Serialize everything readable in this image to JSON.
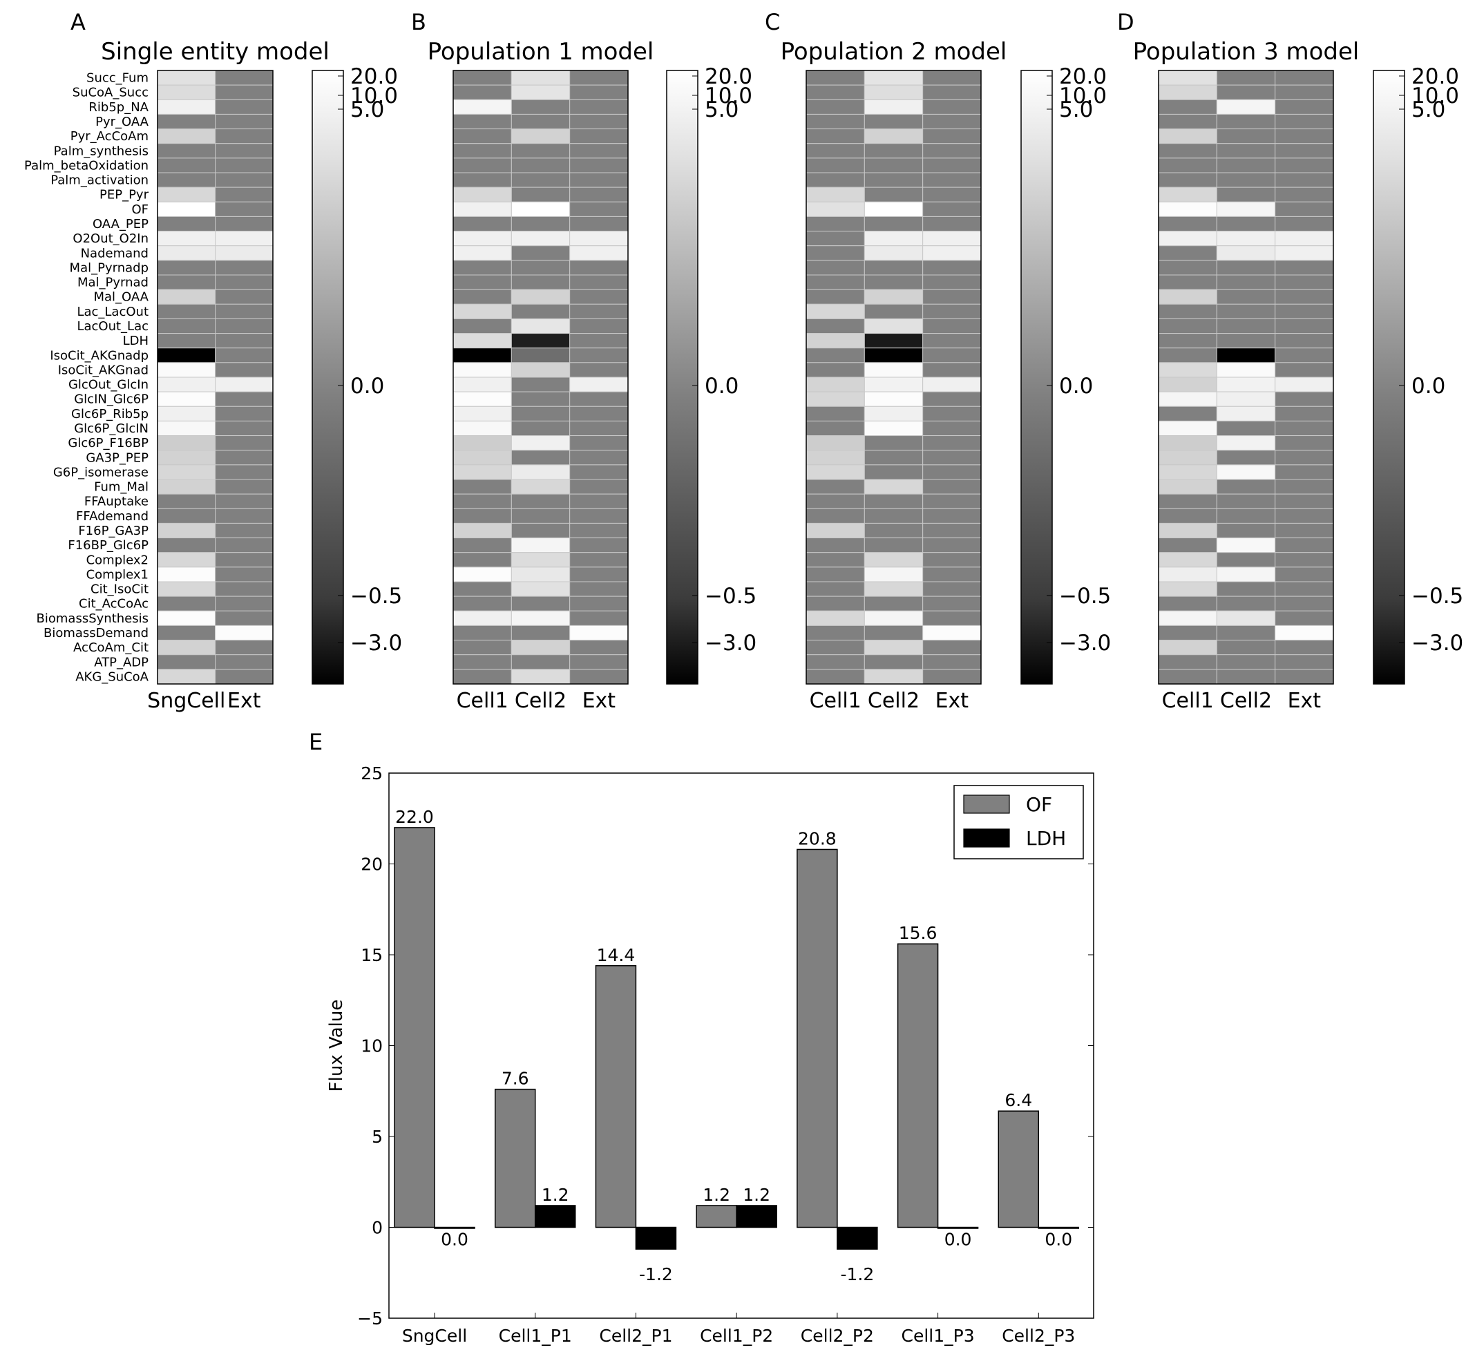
{
  "colors": {
    "of": "#808080",
    "ldh": "#000000",
    "cell_line": "#c8c8c8"
  },
  "heatmap_rows": [
    "Succ_Fum",
    "SuCoA_Succ",
    "Rib5p_NA",
    "Pyr_OAA",
    "Pyr_AcCoAm",
    "Palm_synthesis",
    "Palm_betaOxidation",
    "Palm_activation",
    "PEP_Pyr",
    "OF",
    "OAA_PEP",
    "O2Out_O2In",
    "Nademand",
    "Mal_Pyrnadp",
    "Mal_Pyrnad",
    "Mal_OAA",
    "Lac_LacOut",
    "LacOut_Lac",
    "LDH",
    "IsoCit_AKGnadp",
    "IsoCit_AKGnad",
    "GlcOut_GlcIn",
    "GlcIN_Glc6P",
    "Glc6P_Rib5p",
    "Glc6P_GlcIN",
    "Glc6P_F16BP",
    "GA3P_PEP",
    "G6P_isomerase",
    "Fum_Mal",
    "FFAuptake",
    "FFAdemand",
    "F16P_GA3P",
    "F16BP_Glc6P",
    "Complex2",
    "Complex1",
    "Cit_IsoCit",
    "Cit_AcCoAc",
    "BiomassSynthesis",
    "BiomassDemand",
    "AcCoAm_Cit",
    "ATP_ADP",
    "AKG_SuCoA"
  ],
  "colorbar_ticks": [
    "20.0",
    "10.0",
    "5.0",
    "0.0",
    "−0.5",
    "−3.0"
  ],
  "chart_data": [
    {
      "type": "heatmap",
      "panel": "A",
      "title": "Single entity model",
      "columns": [
        "SngCell",
        "Ext"
      ],
      "gray_values": [
        [
          225,
          128
        ],
        [
          220,
          128
        ],
        [
          240,
          128
        ],
        [
          128,
          128
        ],
        [
          210,
          128
        ],
        [
          128,
          128
        ],
        [
          128,
          128
        ],
        [
          128,
          128
        ],
        [
          215,
          128
        ],
        [
          255,
          128
        ],
        [
          128,
          128
        ],
        [
          240,
          240
        ],
        [
          235,
          235
        ],
        [
          128,
          128
        ],
        [
          128,
          128
        ],
        [
          210,
          128
        ],
        [
          128,
          128
        ],
        [
          128,
          128
        ],
        [
          128,
          128
        ],
        [
          0,
          128
        ],
        [
          250,
          128
        ],
        [
          240,
          240
        ],
        [
          252,
          128
        ],
        [
          240,
          128
        ],
        [
          248,
          128
        ],
        [
          205,
          128
        ],
        [
          210,
          128
        ],
        [
          215,
          128
        ],
        [
          210,
          128
        ],
        [
          128,
          128
        ],
        [
          128,
          128
        ],
        [
          210,
          128
        ],
        [
          128,
          128
        ],
        [
          215,
          128
        ],
        [
          252,
          128
        ],
        [
          215,
          128
        ],
        [
          128,
          128
        ],
        [
          252,
          128
        ],
        [
          128,
          252
        ],
        [
          210,
          128
        ],
        [
          128,
          128
        ],
        [
          215,
          128
        ]
      ]
    },
    {
      "type": "heatmap",
      "panel": "B",
      "title": "Population 1 model",
      "columns": [
        "Cell1",
        "Cell2",
        "Ext"
      ],
      "gray_values": [
        [
          128,
          225,
          128
        ],
        [
          128,
          228,
          128
        ],
        [
          245,
          128,
          128
        ],
        [
          128,
          128,
          128
        ],
        [
          128,
          210,
          128
        ],
        [
          128,
          128,
          128
        ],
        [
          128,
          128,
          128
        ],
        [
          128,
          128,
          128
        ],
        [
          215,
          128,
          128
        ],
        [
          240,
          255,
          128
        ],
        [
          128,
          128,
          128
        ],
        [
          240,
          240,
          240
        ],
        [
          240,
          128,
          240
        ],
        [
          128,
          128,
          128
        ],
        [
          128,
          128,
          128
        ],
        [
          128,
          210,
          128
        ],
        [
          215,
          128,
          128
        ],
        [
          128,
          230,
          128
        ],
        [
          220,
          30,
          128
        ],
        [
          0,
          110,
          128
        ],
        [
          250,
          210,
          128
        ],
        [
          240,
          128,
          240
        ],
        [
          252,
          128,
          128
        ],
        [
          240,
          128,
          128
        ],
        [
          248,
          128,
          128
        ],
        [
          205,
          240,
          128
        ],
        [
          210,
          128,
          128
        ],
        [
          215,
          235,
          128
        ],
        [
          128,
          215,
          128
        ],
        [
          128,
          128,
          128
        ],
        [
          128,
          128,
          128
        ],
        [
          210,
          128,
          128
        ],
        [
          128,
          245,
          128
        ],
        [
          128,
          220,
          128
        ],
        [
          252,
          232,
          128
        ],
        [
          128,
          225,
          128
        ],
        [
          128,
          128,
          128
        ],
        [
          240,
          245,
          128
        ],
        [
          128,
          128,
          252
        ],
        [
          128,
          210,
          128
        ],
        [
          128,
          128,
          128
        ],
        [
          128,
          220,
          128
        ]
      ]
    },
    {
      "type": "heatmap",
      "panel": "C",
      "title": "Population 2 model",
      "columns": [
        "Cell1",
        "Cell2",
        "Ext"
      ],
      "gray_values": [
        [
          128,
          228,
          128
        ],
        [
          128,
          222,
          128
        ],
        [
          128,
          240,
          128
        ],
        [
          128,
          128,
          128
        ],
        [
          128,
          210,
          128
        ],
        [
          128,
          128,
          128
        ],
        [
          128,
          128,
          128
        ],
        [
          128,
          128,
          128
        ],
        [
          215,
          128,
          128
        ],
        [
          225,
          255,
          128
        ],
        [
          128,
          128,
          128
        ],
        [
          128,
          240,
          240
        ],
        [
          128,
          235,
          240
        ],
        [
          128,
          128,
          128
        ],
        [
          128,
          128,
          128
        ],
        [
          128,
          210,
          128
        ],
        [
          215,
          128,
          128
        ],
        [
          128,
          225,
          128
        ],
        [
          210,
          25,
          128
        ],
        [
          128,
          0,
          128
        ],
        [
          128,
          250,
          128
        ],
        [
          212,
          242,
          240
        ],
        [
          215,
          252,
          128
        ],
        [
          128,
          240,
          128
        ],
        [
          128,
          252,
          128
        ],
        [
          205,
          128,
          128
        ],
        [
          210,
          128,
          128
        ],
        [
          215,
          128,
          128
        ],
        [
          128,
          215,
          128
        ],
        [
          128,
          128,
          128
        ],
        [
          128,
          128,
          128
        ],
        [
          210,
          128,
          128
        ],
        [
          128,
          128,
          128
        ],
        [
          128,
          215,
          128
        ],
        [
          128,
          245,
          128
        ],
        [
          128,
          215,
          128
        ],
        [
          128,
          128,
          128
        ],
        [
          215,
          245,
          128
        ],
        [
          128,
          128,
          252
        ],
        [
          128,
          215,
          128
        ],
        [
          128,
          128,
          128
        ],
        [
          128,
          215,
          128
        ]
      ]
    },
    {
      "type": "heatmap",
      "panel": "D",
      "title": "Population 3 model",
      "columns": [
        "Cell1",
        "Cell2",
        "Ext"
      ],
      "gray_values": [
        [
          225,
          128,
          128
        ],
        [
          215,
          128,
          128
        ],
        [
          128,
          245,
          128
        ],
        [
          128,
          128,
          128
        ],
        [
          210,
          128,
          128
        ],
        [
          128,
          128,
          128
        ],
        [
          128,
          128,
          128
        ],
        [
          128,
          128,
          128
        ],
        [
          215,
          128,
          128
        ],
        [
          252,
          245,
          128
        ],
        [
          128,
          128,
          128
        ],
        [
          240,
          240,
          240
        ],
        [
          128,
          235,
          240
        ],
        [
          128,
          128,
          128
        ],
        [
          128,
          128,
          128
        ],
        [
          210,
          128,
          128
        ],
        [
          128,
          128,
          128
        ],
        [
          128,
          128,
          128
        ],
        [
          128,
          128,
          128
        ],
        [
          128,
          0,
          128
        ],
        [
          218,
          250,
          128
        ],
        [
          210,
          242,
          240
        ],
        [
          245,
          240,
          128
        ],
        [
          128,
          240,
          128
        ],
        [
          248,
          128,
          128
        ],
        [
          205,
          242,
          128
        ],
        [
          210,
          128,
          128
        ],
        [
          215,
          248,
          128
        ],
        [
          210,
          128,
          128
        ],
        [
          128,
          128,
          128
        ],
        [
          128,
          128,
          128
        ],
        [
          210,
          128,
          128
        ],
        [
          128,
          248,
          128
        ],
        [
          215,
          128,
          128
        ],
        [
          238,
          245,
          128
        ],
        [
          215,
          128,
          128
        ],
        [
          128,
          128,
          128
        ],
        [
          245,
          230,
          128
        ],
        [
          128,
          128,
          252
        ],
        [
          210,
          128,
          128
        ],
        [
          128,
          128,
          128
        ],
        [
          128,
          128,
          128
        ]
      ]
    },
    {
      "type": "bar",
      "panel": "E",
      "categories": [
        "SngCell",
        "Cell1_P1",
        "Cell2_P1",
        "Cell1_P2",
        "Cell2_P2",
        "Cell1_P3",
        "Cell2_P3"
      ],
      "series": [
        {
          "name": "OF",
          "values": [
            22.0,
            7.6,
            14.4,
            1.2,
            20.8,
            15.6,
            6.4
          ],
          "labels": [
            "22.0",
            "7.6",
            "14.4",
            "1.2",
            "20.8",
            "15.6",
            "6.4"
          ]
        },
        {
          "name": "LDH",
          "values": [
            0.0,
            1.2,
            -1.2,
            1.2,
            -1.2,
            0.0,
            0.0
          ],
          "labels": [
            "0.0",
            "1.2",
            "-1.2",
            "1.2",
            "-1.2",
            "0.0",
            "0.0"
          ]
        }
      ],
      "ylabel": "Flux Value",
      "ylim": [
        -5,
        25
      ],
      "yticks": [
        "−5",
        "0",
        "5",
        "10",
        "15",
        "20",
        "25"
      ],
      "ytick_values": [
        -5,
        0,
        5,
        10,
        15,
        20,
        25
      ],
      "legend": "top-right"
    }
  ]
}
